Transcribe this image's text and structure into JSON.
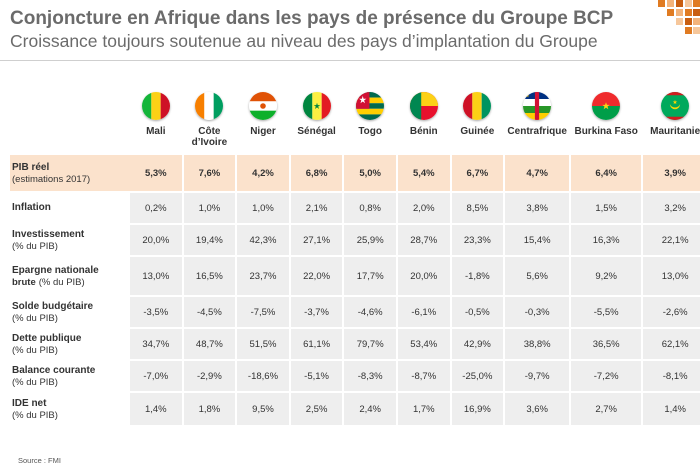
{
  "title": "Conjoncture en Afrique dans les pays de présence du Groupe BCP",
  "subtitle": "Croissance toujours soutenue au niveau des pays d’implantation du Groupe",
  "countries": [
    {
      "name": "Mali",
      "flag": "mali-flag-icon"
    },
    {
      "name": "Côte d’Ivoire",
      "flag": "cote-divoire-flag-icon"
    },
    {
      "name": "Niger",
      "flag": "niger-flag-icon"
    },
    {
      "name": "Sénégal",
      "flag": "senegal-flag-icon"
    },
    {
      "name": "Togo",
      "flag": "togo-flag-icon"
    },
    {
      "name": "Bénin",
      "flag": "benin-flag-icon"
    },
    {
      "name": "Guinée",
      "flag": "guinee-flag-icon"
    },
    {
      "name": "Centrafrique",
      "flag": "centrafrique-flag-icon"
    },
    {
      "name": "Burkina Faso",
      "flag": "burkina-faso-flag-icon"
    },
    {
      "name": "Mauritanie",
      "flag": "mauritanie-flag-icon"
    }
  ],
  "rows": [
    {
      "label": "PIB réel",
      "sub": "(estimations 2017)",
      "values": [
        "5,3%",
        "7,6%",
        "4,2%",
        "6,8%",
        "5,0%",
        "5,4%",
        "6,7%",
        "4,7%",
        "6,4%",
        "3,9%"
      ]
    },
    {
      "label": "Inflation",
      "sub": "",
      "values": [
        "0,2%",
        "1,0%",
        "1,0%",
        "2,1%",
        "0,8%",
        "2,0%",
        "8,5%",
        "3,8%",
        "1,5%",
        "3,2%"
      ]
    },
    {
      "label": "Investissement",
      "sub": "(% du PIB)",
      "values": [
        "20,0%",
        "19,4%",
        "42,3%",
        "27,1%",
        "25,9%",
        "28,7%",
        "23,3%",
        "15,4%",
        "16,3%",
        "22,1%"
      ]
    },
    {
      "label": "Epargne nationale",
      "label2": "brute",
      "sub": "(% du PIB)",
      "values": [
        "13,0%",
        "16,5%",
        "23,7%",
        "22,0%",
        "17,7%",
        "20,0%",
        "-1,8%",
        "5,6%",
        "9,2%",
        "13,0%"
      ]
    },
    {
      "label": "Solde budgétaire",
      "sub": "(% du PIB)",
      "values": [
        "-3,5%",
        "-4,5%",
        "-7,5%",
        "-3,7%",
        "-4,6%",
        "-6,1%",
        "-0,5%",
        "-0,3%",
        "-5,5%",
        "-2,6%"
      ]
    },
    {
      "label": "Dette publique",
      "sub": "(% du PIB)",
      "values": [
        "34,7%",
        "48,7%",
        "51,5%",
        "61,1%",
        "79,7%",
        "53,4%",
        "42,9%",
        "38,8%",
        "36,5%",
        "62,1%"
      ]
    },
    {
      "label": "Balance courante",
      "sub": "(% du PIB)",
      "values": [
        "-7,0%",
        "-2,9%",
        "-18,6%",
        "-5,1%",
        "-8,3%",
        "-8,7%",
        "-25,0%",
        "-9,7%",
        "-7,2%",
        "-8,1%"
      ]
    },
    {
      "label": "IDE net",
      "sub": "(% du PIB)",
      "values": [
        "1,4%",
        "1,8%",
        "9,5%",
        "2,5%",
        "2,4%",
        "1,7%",
        "16,9%",
        "3,6%",
        "2,7%",
        "1,4%"
      ]
    }
  ],
  "source": "Source : FMI",
  "colors": {
    "highlight": "#fbe2cc",
    "cell": "#eeeeee",
    "title": "#6b6b6b",
    "accent": "#e07b22"
  }
}
